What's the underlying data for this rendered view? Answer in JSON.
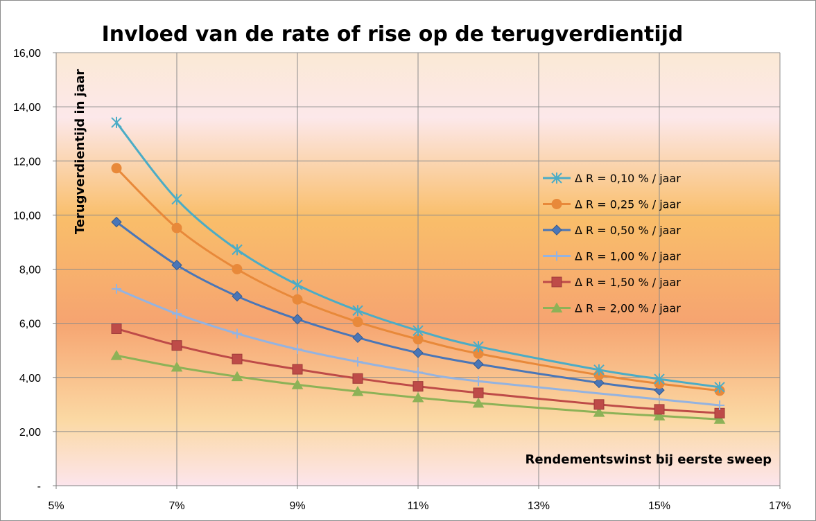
{
  "chart_data": {
    "type": "line",
    "title": "Invloed van de rate of rise op de terugverdientijd",
    "xlabel": "Rendementswinst bij eerste sweep",
    "ylabel": "Terugverdientijd in jaar",
    "xlim": [
      0.05,
      0.17
    ],
    "ylim": [
      0,
      16
    ],
    "x_ticks": [
      0.05,
      0.07,
      0.09,
      0.11,
      0.13,
      0.15,
      0.17
    ],
    "x_tick_labels": [
      "5%",
      "7%",
      "9%",
      "11%",
      "13%",
      "15%",
      "17%"
    ],
    "y_ticks": [
      0,
      2,
      4,
      6,
      8,
      10,
      12,
      14,
      16
    ],
    "y_tick_labels": [
      "-",
      "2,00",
      "4,00",
      "6,00",
      "8,00",
      "10,00",
      "12,00",
      "14,00",
      "16,00"
    ],
    "grid": true,
    "legend_position": "right",
    "x": [
      0.06,
      0.07,
      0.08,
      0.09,
      0.1,
      0.11,
      0.12,
      0.14,
      0.15,
      0.16
    ],
    "series": [
      {
        "name": "Δ R = 0,10 % / jaar",
        "color": "#4bacc6",
        "marker": "asterisk",
        "values": [
          13.42,
          10.58,
          8.72,
          7.42,
          6.47,
          5.73,
          5.14,
          4.28,
          3.94,
          3.64
        ]
      },
      {
        "name": "Δ R = 0,25 % / jaar",
        "color": "#e8893a",
        "marker": "circle",
        "values": [
          11.73,
          9.52,
          8.0,
          6.88,
          6.05,
          5.41,
          4.88,
          4.09,
          3.77,
          3.51
        ]
      },
      {
        "name": "Δ R = 0,50 % / jaar",
        "color": "#4a76b7",
        "marker": "diamond",
        "values": [
          9.74,
          8.15,
          7.0,
          6.15,
          5.47,
          4.91,
          4.49,
          3.8,
          3.53,
          null
        ]
      },
      {
        "name": "Δ R = 1,00 % / jaar",
        "color": "#94b3e0",
        "marker": "plus",
        "values": [
          7.27,
          6.35,
          5.62,
          5.04,
          4.58,
          4.19,
          3.86,
          null,
          null,
          2.97
        ]
      },
      {
        "name": "Δ R = 1,50 % / jaar",
        "color": "#be4b48",
        "marker": "square",
        "values": [
          5.8,
          5.18,
          4.68,
          4.3,
          3.96,
          3.67,
          3.43,
          3.0,
          2.82,
          2.68
        ]
      },
      {
        "name": "Δ R = 2,00 % / jaar",
        "color": "#8db257",
        "marker": "triangle",
        "values": [
          4.81,
          4.38,
          4.03,
          3.73,
          3.48,
          3.25,
          3.05,
          2.71,
          2.58,
          2.45
        ]
      }
    ]
  }
}
